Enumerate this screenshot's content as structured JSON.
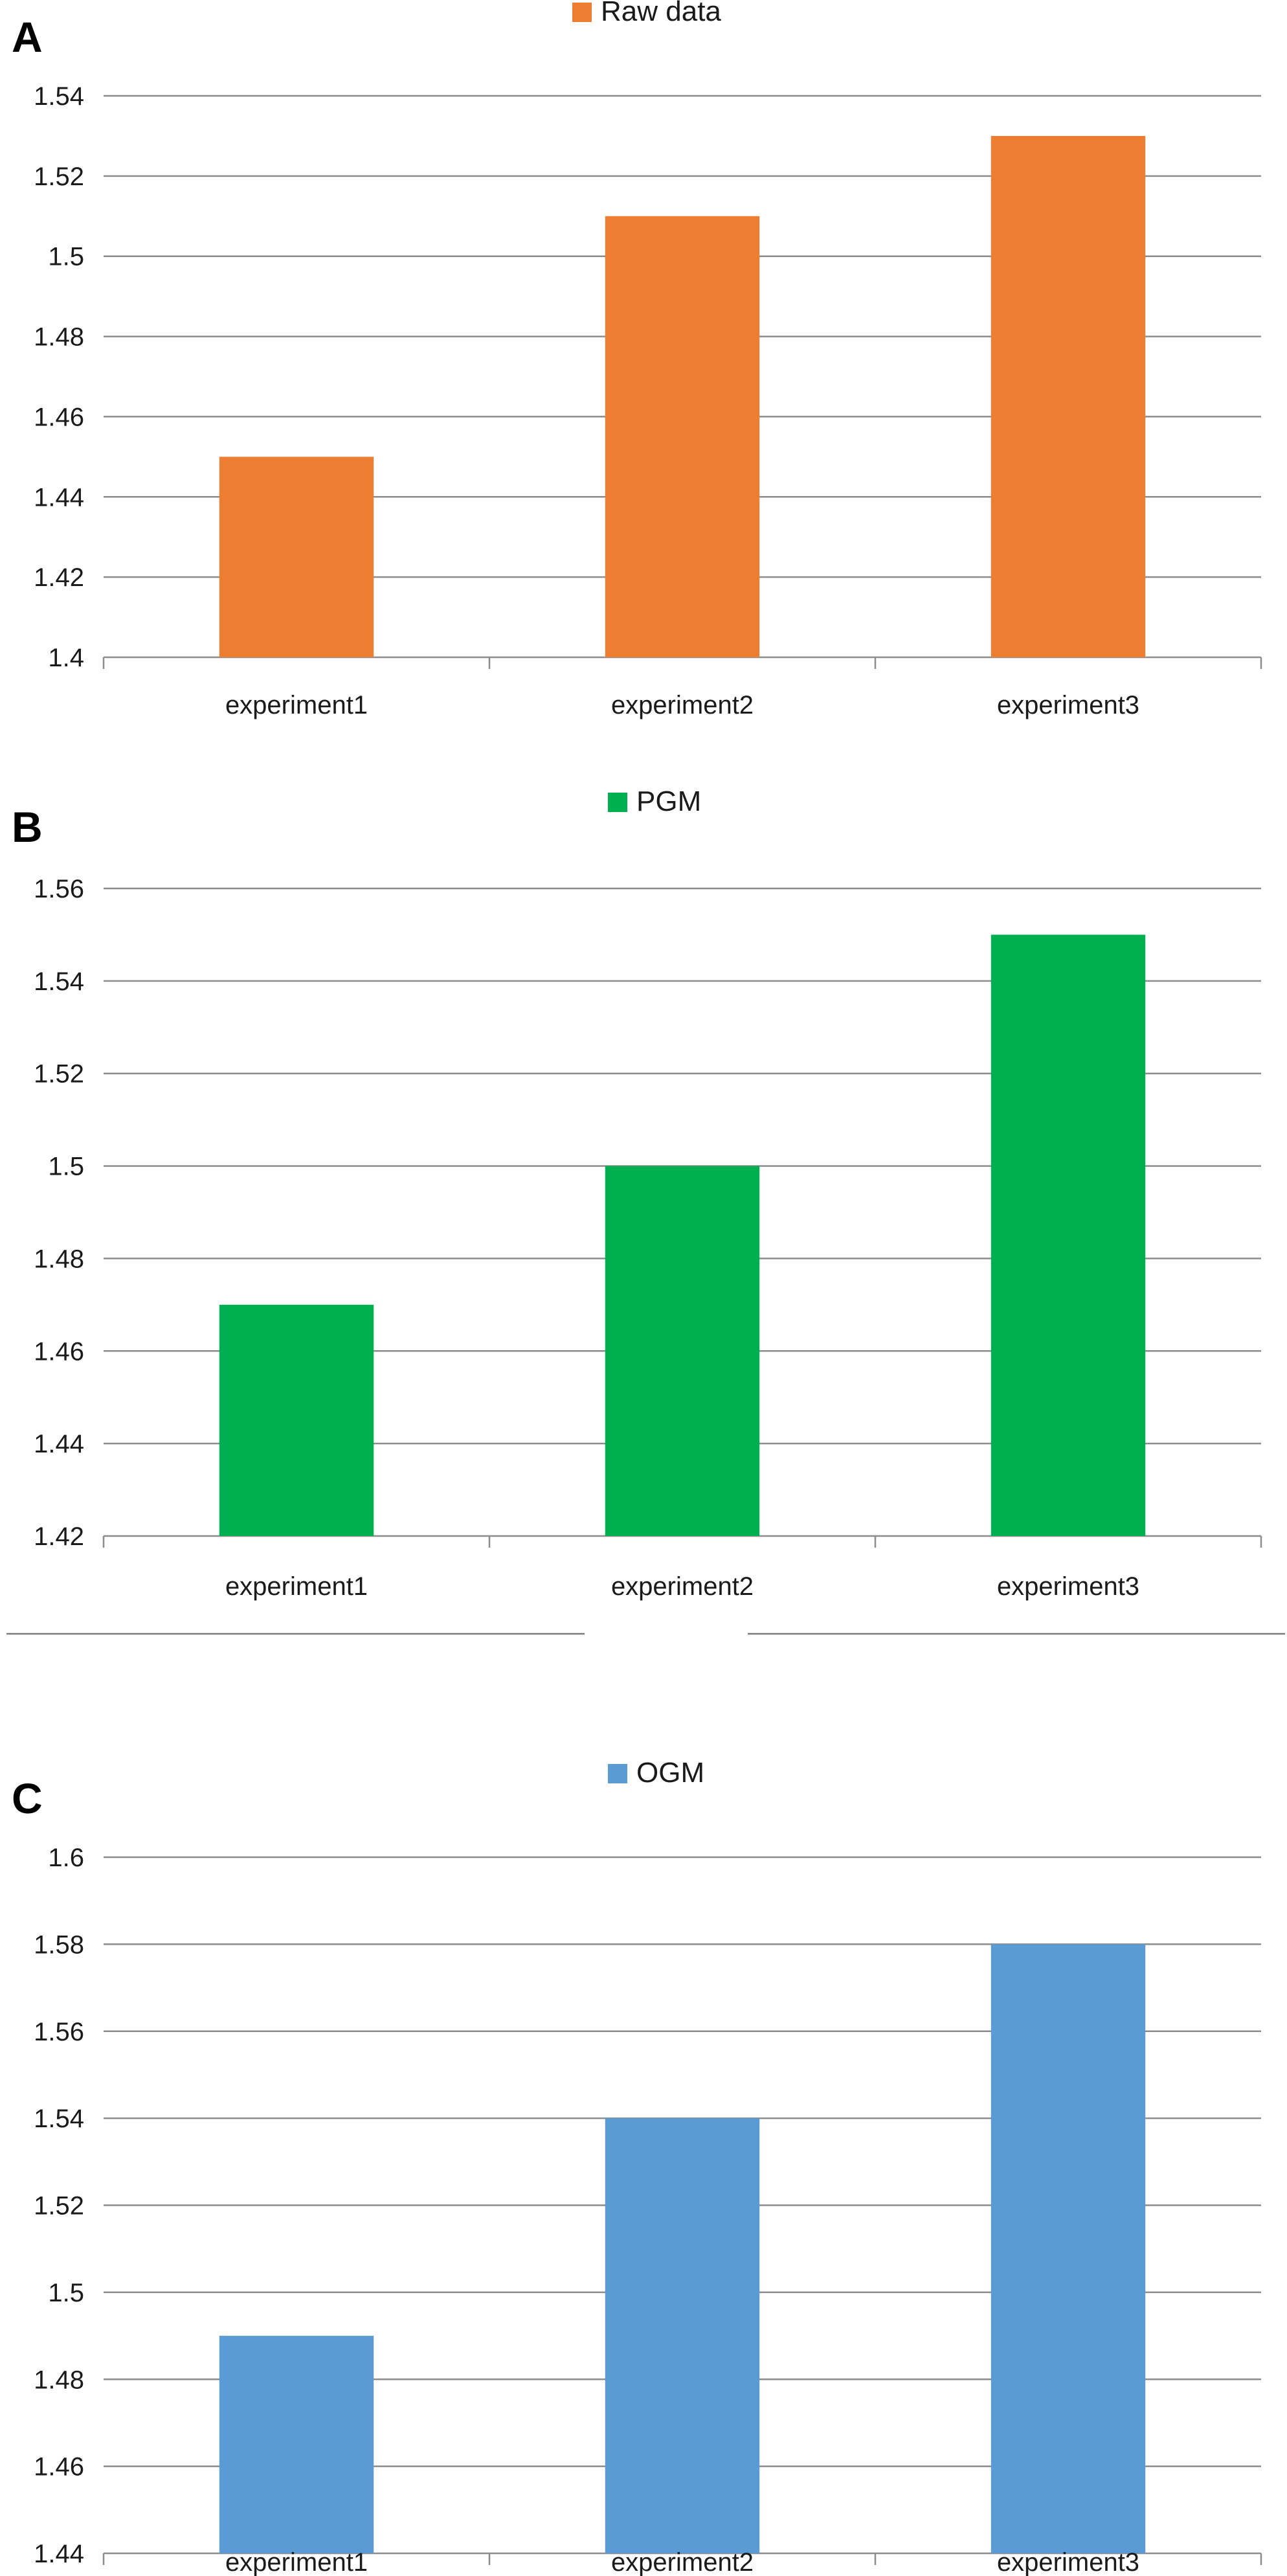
{
  "chart_data": [
    {
      "panel_label": "A",
      "type": "bar",
      "categories": [
        "experiment1",
        "experiment2",
        "experiment3"
      ],
      "series": [
        {
          "name": "Raw data",
          "values": [
            1.45,
            1.51,
            1.53
          ],
          "color": "#ED7D31"
        }
      ],
      "ylim": [
        1.4,
        1.54
      ],
      "ytick_step": 0.02,
      "ytick_labels": [
        "1.4",
        "1.42",
        "1.44",
        "1.46",
        "1.48",
        "1.5",
        "1.52",
        "1.54"
      ],
      "legend_position": "top-center",
      "grid": true,
      "title": "",
      "xlabel": "",
      "ylabel": ""
    },
    {
      "panel_label": "B",
      "type": "bar",
      "categories": [
        "experiment1",
        "experiment2",
        "experiment3"
      ],
      "series": [
        {
          "name": "PGM",
          "values": [
            1.47,
            1.5,
            1.55
          ],
          "color": "#00B050"
        }
      ],
      "ylim": [
        1.42,
        1.56
      ],
      "ytick_step": 0.02,
      "ytick_labels": [
        "1.42",
        "1.44",
        "1.46",
        "1.48",
        "1.5",
        "1.52",
        "1.54",
        "1.56"
      ],
      "legend_position": "top-center",
      "grid": true,
      "title": "",
      "xlabel": "",
      "ylabel": ""
    },
    {
      "panel_label": "C",
      "type": "bar",
      "categories": [
        "experiment1",
        "experiment2",
        "experiment3"
      ],
      "series": [
        {
          "name": "OGM",
          "values": [
            1.49,
            1.54,
            1.58
          ],
          "color": "#5B9BD5"
        }
      ],
      "ylim": [
        1.44,
        1.6
      ],
      "ytick_step": 0.02,
      "ytick_labels": [
        "1.44",
        "1.46",
        "1.48",
        "1.5",
        "1.52",
        "1.54",
        "1.56",
        "1.58",
        "1.6"
      ],
      "legend_position": "top-center",
      "grid": true,
      "title": "",
      "xlabel": "",
      "ylabel": ""
    }
  ]
}
